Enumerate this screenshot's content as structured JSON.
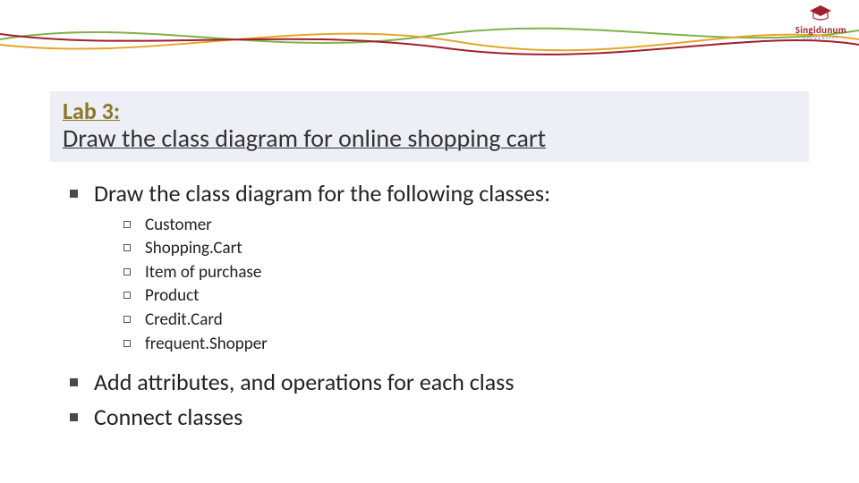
{
  "logo": {
    "name": "Singidunum",
    "sub": "UNIVERSITY",
    "color": "#a01f2d"
  },
  "waves": {
    "stroke_a": "#7fb24a",
    "stroke_b": "#e4a62a",
    "stroke_c": "#a01f2d",
    "width": 2
  },
  "title_box": {
    "background": "#eeeef6",
    "lab_color": "#8a7a24",
    "label": "Lab 3:",
    "title": "Draw the class diagram for online shopping cart"
  },
  "bullets": [
    {
      "text": "Draw the class diagram for the following classes:",
      "subitems": [
        "Customer",
        "Shopping.Cart",
        "Item of purchase",
        "Product",
        "Credit.Card",
        "frequent.Shopper"
      ]
    },
    {
      "text": "Add attributes, and operations for each class",
      "subitems": []
    },
    {
      "text": "Connect classes",
      "subitems": []
    }
  ]
}
